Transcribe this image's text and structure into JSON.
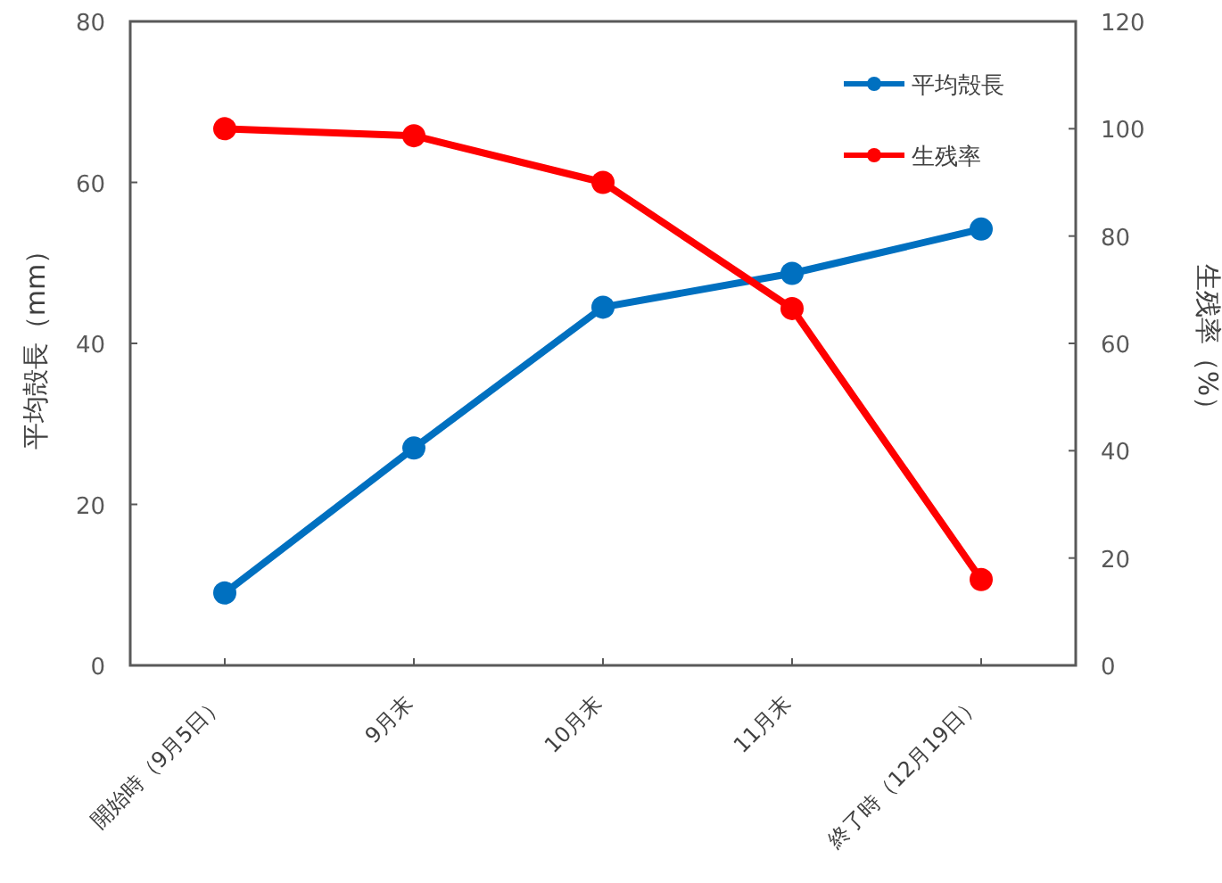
{
  "chart_data": {
    "type": "line",
    "ylabel": "平均殻長（mm）",
    "y2label": "生残率（%）",
    "categories": [
      "開始時（9月5日）",
      "9月末",
      "10月末",
      "11月末",
      "終了時（12月19日）"
    ],
    "series": [
      {
        "name": "平均殻長",
        "color": "#0070c0",
        "values": [
          9,
          27,
          44.5,
          48.7,
          54.2
        ]
      },
      {
        "name": "生残率",
        "color": "#ff0000",
        "axis": "y2",
        "values": [
          100,
          98.7,
          90,
          66.5,
          16
        ]
      }
    ],
    "ylim": [
      0,
      80
    ],
    "yticks": [
      0,
      20,
      40,
      60,
      80
    ],
    "y2lim": [
      0,
      120
    ],
    "y2ticks": [
      0,
      20,
      40,
      60,
      80,
      100,
      120
    ],
    "grid": false,
    "legend": "top right",
    "marker": "circle",
    "line_style": "solid"
  }
}
